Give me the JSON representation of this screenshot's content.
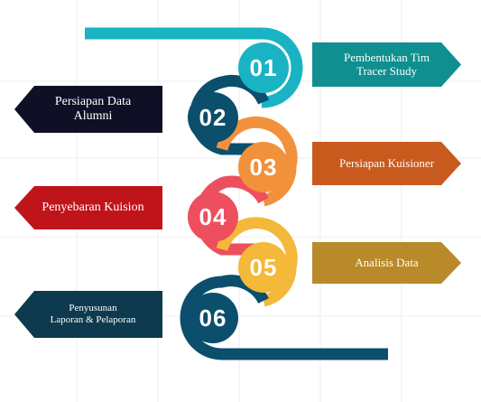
{
  "steps": [
    {
      "number": "01",
      "label": "Pembentukan Tim\nTracer Study",
      "color": "#1ab3c4",
      "box_color": "#0f8f8f"
    },
    {
      "number": "02",
      "label": "Persiapan Data\nAlumni",
      "color": "#0b4f6c",
      "box_color": "#0f0f25"
    },
    {
      "number": "03",
      "label": "Persiapan Kuisioner",
      "color": "#f2913b",
      "box_color": "#c95a1e"
    },
    {
      "number": "04",
      "label": "Penyebaran Kuision",
      "color": "#ee4f5e",
      "box_color": "#c0141b"
    },
    {
      "number": "05",
      "label": "Analisis Data",
      "color": "#f4b83a",
      "box_color": "#b88a2a"
    },
    {
      "number": "06",
      "label": "Penyusunan\nLaporan & Pelaporan",
      "color": "#0b4f6c",
      "box_color": "#0d3a4e"
    }
  ]
}
